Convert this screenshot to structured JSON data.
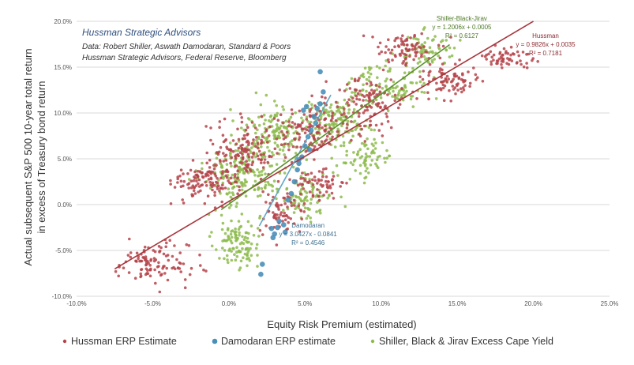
{
  "chart_data": {
    "type": "scatter",
    "xlabel": "Equity Risk Premium (estimated)",
    "ylabel_line1": "Actual subsequent S&P 500 10-year total return",
    "ylabel_line2": "in excess of Treasury bond return",
    "xlim": [
      -10,
      25
    ],
    "ylim": [
      -10,
      20
    ],
    "x_ticks": [
      -10,
      -5,
      0,
      5,
      10,
      15,
      20,
      25
    ],
    "y_ticks": [
      -10,
      -5,
      0,
      5,
      10,
      15,
      20
    ],
    "x_tick_labels": [
      "-10.0%",
      "-5.0%",
      "0.0%",
      "5.0%",
      "10.0%",
      "15.0%",
      "20.0%",
      "25.0%"
    ],
    "y_tick_labels": [
      "-10.0%",
      "-5.0%",
      "0.0%",
      "5.0%",
      "10.0%",
      "15.0%",
      "20.0%"
    ],
    "grid": "horizontal",
    "header": {
      "title": "Hussman Strategic Advisors",
      "line1": "Data: Robert Shiller, Aswath Damodaran, Standard & Poors",
      "line2": "Hussman Strategic Advisors, Federal Reserve, Bloomberg"
    },
    "series": [
      {
        "name": "Hussman ERP Estimate",
        "color": "#b5434a",
        "trend": {
          "slope": 0.9826,
          "intercept": 0.35,
          "x_range": [
            -7.5,
            20
          ]
        },
        "annotation": {
          "name": "Hussman",
          "equation": "y = 0.9826x + 0.0035",
          "r2": "R² = 0.7181",
          "x": 20.8,
          "y": 18.2
        },
        "clusters": [
          {
            "cx": -5,
            "cy": -6.5,
            "sx": 1.6,
            "sy": 1.5,
            "n": 110
          },
          {
            "cx": -1.5,
            "cy": 2.5,
            "sx": 1.4,
            "sy": 1.4,
            "n": 120
          },
          {
            "cx": 1.0,
            "cy": 6.0,
            "sx": 1.5,
            "sy": 2.0,
            "n": 140
          },
          {
            "cx": 3.5,
            "cy": -1.0,
            "sx": 1.0,
            "sy": 1.5,
            "n": 70
          },
          {
            "cx": 5.5,
            "cy": 8.0,
            "sx": 1.7,
            "sy": 1.8,
            "n": 130
          },
          {
            "cx": 9.0,
            "cy": 11.0,
            "sx": 1.8,
            "sy": 1.8,
            "n": 120
          },
          {
            "cx": 11.5,
            "cy": 17.0,
            "sx": 1.3,
            "sy": 1.2,
            "n": 80
          },
          {
            "cx": 14.5,
            "cy": 13.5,
            "sx": 1.4,
            "sy": 1.3,
            "n": 80
          },
          {
            "cx": 18.0,
            "cy": 16.0,
            "sx": 1.3,
            "sy": 0.9,
            "n": 60
          },
          {
            "cx": 6.0,
            "cy": 2.0,
            "sx": 1.2,
            "sy": 1.2,
            "n": 60
          }
        ]
      },
      {
        "name": "Damodaran ERP estimate",
        "color": "#4a8fb8",
        "trend": {
          "slope": 3.0427,
          "intercept": -8.41,
          "x_range": [
            2.0,
            6.7
          ]
        },
        "annotation": {
          "name": "Damodaran",
          "equation": "y = 3.0427x - 0.0841",
          "r2": "R² = 0.4546",
          "x": 5.2,
          "y": -2.5
        },
        "points": [
          [
            2.1,
            -7.6
          ],
          [
            2.2,
            -6.5
          ],
          [
            2.9,
            -3.6
          ],
          [
            3.0,
            -3.2
          ],
          [
            3.2,
            -2.5
          ],
          [
            3.3,
            -1.8
          ],
          [
            3.6,
            -2.2
          ],
          [
            3.7,
            -3.0
          ],
          [
            2.8,
            -2.6
          ],
          [
            3.9,
            0.5
          ],
          [
            4.1,
            1.2
          ],
          [
            4.3,
            2.5
          ],
          [
            4.5,
            3.8
          ],
          [
            4.6,
            4.5
          ],
          [
            4.8,
            5.2
          ],
          [
            5.0,
            6.4
          ],
          [
            5.2,
            7.4
          ],
          [
            5.4,
            8.1
          ],
          [
            5.6,
            9.6
          ],
          [
            5.8,
            10.5
          ],
          [
            6.0,
            11.0
          ],
          [
            6.2,
            12.3
          ],
          [
            6.0,
            14.5
          ],
          [
            5.1,
            10.7
          ],
          [
            4.9,
            10.3
          ],
          [
            4.6,
            4.9
          ],
          [
            5.3,
            6.0
          ],
          [
            5.7,
            8.9
          ]
        ]
      },
      {
        "name": "Shiller, Black & Jirav Excess Cape Yield",
        "color": "#8dbb4c",
        "trend": {
          "slope": 1.2006,
          "intercept": 0.05,
          "x_range": [
            -0.5,
            14.5
          ]
        },
        "annotation": {
          "name": "Shiller-Black-Jirav",
          "equation": "y = 1.2006x + 0.0005",
          "r2": "R² = 0.6127",
          "x": 15.3,
          "y": 20.1
        },
        "clusters": [
          {
            "cx": 0.5,
            "cy": -4.0,
            "sx": 1.0,
            "sy": 2.0,
            "n": 110
          },
          {
            "cx": 1.0,
            "cy": 3.5,
            "sx": 1.7,
            "sy": 2.4,
            "n": 190
          },
          {
            "cx": 3.0,
            "cy": 8.0,
            "sx": 1.5,
            "sy": 2.0,
            "n": 130
          },
          {
            "cx": 5.0,
            "cy": 1.0,
            "sx": 1.2,
            "sy": 1.8,
            "n": 90
          },
          {
            "cx": 7.0,
            "cy": 9.0,
            "sx": 1.6,
            "sy": 1.6,
            "n": 140
          },
          {
            "cx": 10.5,
            "cy": 13.0,
            "sx": 1.8,
            "sy": 1.6,
            "n": 120
          },
          {
            "cx": 13.0,
            "cy": 17.0,
            "sx": 1.3,
            "sy": 1.2,
            "n": 70
          },
          {
            "cx": 9.0,
            "cy": 5.0,
            "sx": 1.3,
            "sy": 1.5,
            "n": 70
          }
        ]
      }
    ],
    "legend": {
      "placement": "bottom",
      "entries": [
        "Hussman ERP Estimate",
        "Damodaran ERP estimate",
        "Shiller, Black & Jirav Excess Cape Yield"
      ]
    }
  }
}
